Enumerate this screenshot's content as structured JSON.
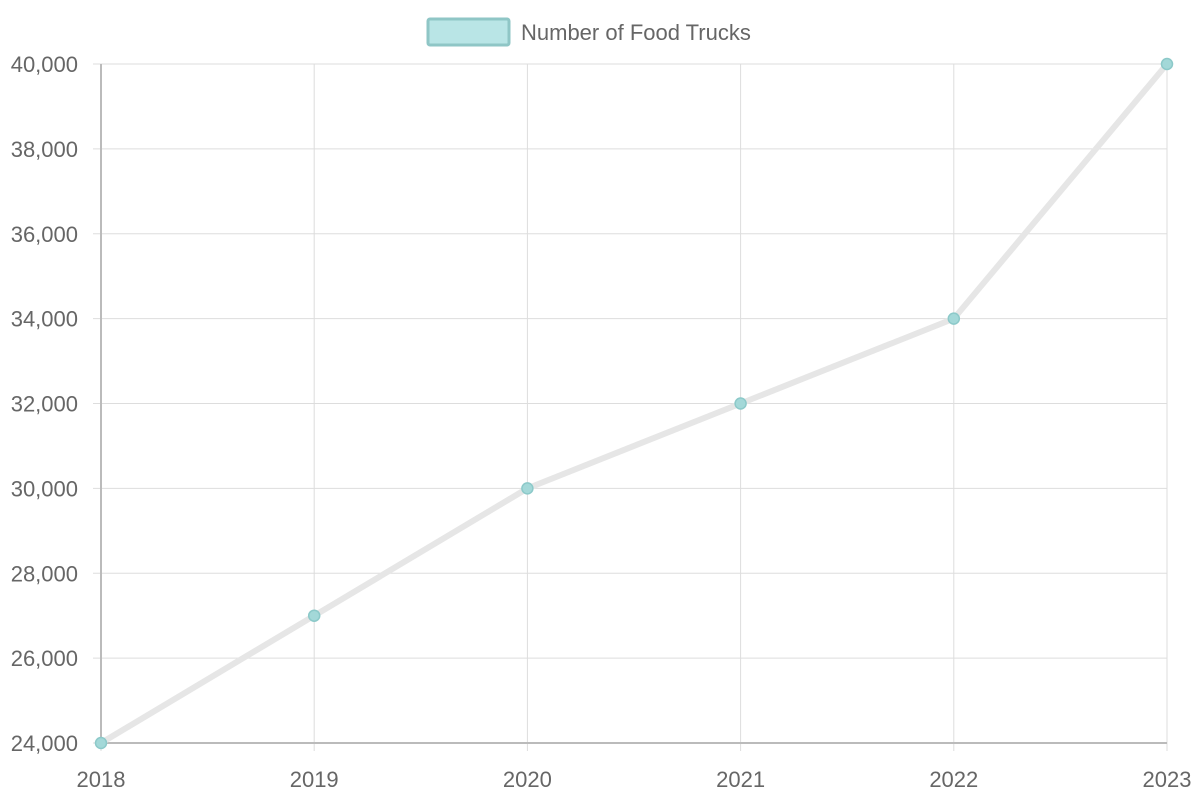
{
  "chart_data": {
    "type": "line",
    "title": "",
    "xlabel": "",
    "ylabel": "",
    "categories": [
      "2018",
      "2019",
      "2020",
      "2021",
      "2022",
      "2023"
    ],
    "series": [
      {
        "name": "Number of Food Trucks",
        "values": [
          24000,
          27000,
          30000,
          32000,
          34000,
          40000
        ]
      }
    ],
    "ylim": [
      24000,
      40000
    ],
    "y_ticks": [
      "24,000",
      "26,000",
      "28,000",
      "30,000",
      "32,000",
      "34,000",
      "36,000",
      "38,000",
      "40,000"
    ],
    "grid": true,
    "legend_position": "top-center",
    "colors": {
      "line": "#e6e6e6",
      "point_fill": "#a3d8d8",
      "point_stroke": "#8cc9c9",
      "legend_fill": "#b9e5e6",
      "legend_stroke": "#8fc6c6",
      "grid": "#dddddd",
      "axis": "#bbbbbb",
      "text": "#666666"
    }
  }
}
